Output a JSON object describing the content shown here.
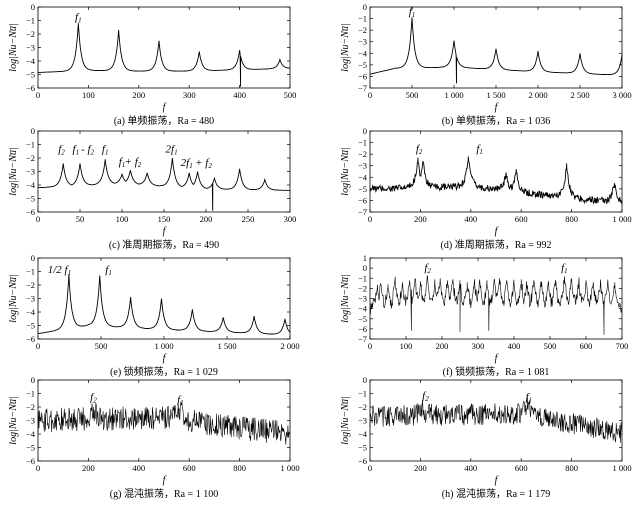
{
  "chart_data": [
    {
      "type": "line",
      "caption": "(a) 单频振荡，Ra = 480",
      "xlabel": "f",
      "ylabel": "log|Nu−Nu̅|",
      "xlim": [
        0,
        500
      ],
      "ylim": [
        -6,
        0
      ],
      "xticks": [
        0,
        100,
        200,
        300,
        400,
        500
      ],
      "xtick_labels": [
        "0",
        "100",
        "200",
        "300",
        "400",
        "500"
      ],
      "yticks": [
        0,
        -1,
        -2,
        -3,
        -4,
        -5,
        -6
      ],
      "ytick_labels": [
        "0",
        "−1",
        "−2",
        "−3",
        "−4",
        "−5",
        "−6"
      ],
      "baseline": [
        [
          0,
          -4.85
        ],
        [
          100,
          -4.7
        ],
        [
          200,
          -4.75
        ],
        [
          300,
          -4.75
        ],
        [
          400,
          -4.65
        ],
        [
          500,
          -4.55
        ]
      ],
      "peaks": [
        [
          80,
          -1.2
        ],
        [
          160,
          -1.7
        ],
        [
          240,
          -2.5
        ],
        [
          320,
          -3.3
        ],
        [
          400,
          -3.2
        ],
        [
          480,
          -3.9
        ]
      ],
      "dips": [
        [
          402,
          -5.9
        ]
      ],
      "noise": 0,
      "annotations": [
        {
          "text": "f",
          "sub": "1",
          "x": 80,
          "y": -1.0
        }
      ]
    },
    {
      "type": "line",
      "caption": "(b) 单频振荡，Ra = 1 036",
      "xlabel": "f",
      "ylabel": "log|Nu−Nu̅|",
      "xlim": [
        0,
        3000
      ],
      "ylim": [
        -7,
        0
      ],
      "xticks": [
        0,
        500,
        1000,
        1500,
        2000,
        2500,
        3000
      ],
      "xtick_labels": [
        "0",
        "500",
        "1 000",
        "1 500",
        "2 000",
        "2 500",
        "3 000"
      ],
      "yticks": [
        0,
        -1,
        -2,
        -3,
        -4,
        -5,
        -6,
        -7
      ],
      "ytick_labels": [
        "0",
        "−1",
        "−2",
        "−3",
        "−4",
        "−5",
        "−6",
        "−7"
      ],
      "baseline": [
        [
          0,
          -5.8
        ],
        [
          300,
          -5.3
        ],
        [
          1000,
          -5.2
        ],
        [
          2000,
          -5.6
        ],
        [
          3000,
          -5.9
        ]
      ],
      "peaks": [
        [
          500,
          -0.9
        ],
        [
          1000,
          -2.9
        ],
        [
          1500,
          -3.6
        ],
        [
          2000,
          -3.8
        ],
        [
          2500,
          -4.0
        ],
        [
          3000,
          -4.1
        ]
      ],
      "dips": [
        [
          1030,
          -6.6
        ]
      ],
      "noise": 0,
      "annotations": [
        {
          "text": "f",
          "sub": "1",
          "x": 500,
          "y": -0.7
        }
      ]
    },
    {
      "type": "line",
      "caption": "(c) 准周期振荡，Ra = 490",
      "xlabel": "f",
      "ylabel": "log|Nu−Nu̅|",
      "xlim": [
        0,
        300
      ],
      "ylim": [
        -6,
        0
      ],
      "xticks": [
        0,
        50,
        100,
        150,
        200,
        250,
        300
      ],
      "xtick_labels": [
        "0",
        "50",
        "100",
        "150",
        "200",
        "250",
        "300"
      ],
      "yticks": [
        0,
        -1,
        -2,
        -3,
        -4,
        -5,
        -6
      ],
      "ytick_labels": [
        "0",
        "−1",
        "−2",
        "−3",
        "−4",
        "−5",
        "−6"
      ],
      "baseline": [
        [
          0,
          -4.2
        ],
        [
          100,
          -3.9
        ],
        [
          200,
          -4.3
        ],
        [
          300,
          -4.4
        ]
      ],
      "peaks": [
        [
          30,
          -2.4
        ],
        [
          50,
          -2.4
        ],
        [
          80,
          -2.1
        ],
        [
          100,
          -3.2
        ],
        [
          110,
          -2.9
        ],
        [
          130,
          -3.1
        ],
        [
          160,
          -2.0
        ],
        [
          180,
          -3.1
        ],
        [
          190,
          -3.0
        ],
        [
          210,
          -3.5
        ],
        [
          240,
          -2.8
        ],
        [
          270,
          -3.6
        ]
      ],
      "dips": [
        [
          208,
          -5.9
        ]
      ],
      "noise": 0,
      "annotations": [
        {
          "text": "f",
          "sub": "2",
          "x": 28,
          "y": -1.6
        },
        {
          "text": "f",
          "sub": "1",
          "x": 45,
          "y": -1.6
        },
        {
          "text": "- f",
          "sub": "2",
          "x": 59,
          "y": -1.6
        },
        {
          "text": "f",
          "sub": "1",
          "x": 80,
          "y": -1.6
        },
        {
          "text": "f",
          "sub": "1",
          "x": 100,
          "y": -2.5
        },
        {
          "text": "+ f",
          "sub": "2",
          "x": 113,
          "y": -2.5
        },
        {
          "text": "2f",
          "sub": "1",
          "x": 159,
          "y": -1.6
        },
        {
          "text": "2f",
          "sub": "1",
          "x": 177,
          "y": -2.6
        },
        {
          "text": "+ f",
          "sub": "2",
          "x": 197,
          "y": -2.6
        }
      ]
    },
    {
      "type": "line",
      "caption": "(d) 准周期振荡，Ra = 992",
      "xlabel": "f",
      "ylabel": "log|Nu−Nu̅|",
      "xlim": [
        0,
        1000
      ],
      "ylim": [
        -7,
        0
      ],
      "xticks": [
        0,
        200,
        400,
        600,
        800,
        1000
      ],
      "xtick_labels": [
        "0",
        "200",
        "400",
        "600",
        "800",
        "1 000"
      ],
      "yticks": [
        0,
        -1,
        -2,
        -3,
        -4,
        -5,
        -6,
        -7
      ],
      "ytick_labels": [
        "0",
        "−1",
        "−2",
        "−3",
        "−4",
        "−5",
        "−6",
        "−7"
      ],
      "baseline": [
        [
          0,
          -5.0
        ],
        [
          400,
          -4.8
        ],
        [
          800,
          -5.8
        ],
        [
          1000,
          -6.2
        ]
      ],
      "peaks": [
        [
          190,
          -2.3
        ],
        [
          210,
          -2.6
        ],
        [
          390,
          -2.2
        ],
        [
          540,
          -3.6
        ],
        [
          580,
          -3.3
        ],
        [
          780,
          -2.8
        ],
        [
          970,
          -4.5
        ]
      ],
      "dips": [],
      "noise": 0.3,
      "annotations": [
        {
          "text": "f",
          "sub": "2",
          "x": 195,
          "y": -1.8
        },
        {
          "text": "f",
          "sub": "1",
          "x": 435,
          "y": -1.8
        }
      ]
    },
    {
      "type": "line",
      "caption": "(e) 锁频振荡，Ra = 1 029",
      "xlabel": "f",
      "ylabel": "log|Nu−Nu̅|",
      "xlim": [
        0,
        2000
      ],
      "ylim": [
        -6,
        0
      ],
      "xticks": [
        0,
        500,
        1000,
        1500,
        2000
      ],
      "xtick_labels": [
        "0",
        "500",
        "1 000",
        "1 500",
        "2 000"
      ],
      "yticks": [
        0,
        -1,
        -2,
        -3,
        -4,
        -5,
        -6
      ],
      "ytick_labels": [
        "0",
        "−1",
        "−2",
        "−3",
        "−4",
        "−5",
        "−6"
      ],
      "baseline": [
        [
          0,
          -5.6
        ],
        [
          400,
          -5.0
        ],
        [
          1000,
          -5.3
        ],
        [
          2000,
          -5.7
        ]
      ],
      "peaks": [
        [
          245,
          -1.2
        ],
        [
          490,
          -1.3
        ],
        [
          735,
          -2.9
        ],
        [
          980,
          -3.0
        ],
        [
          1225,
          -3.8
        ],
        [
          1470,
          -4.4
        ],
        [
          1715,
          -4.3
        ],
        [
          1960,
          -4.5
        ]
      ],
      "dips": [],
      "noise": 0,
      "annotations": [
        {
          "text": "1/2 f",
          "sub": "1",
          "x": 170,
          "y": -1.1
        },
        {
          "text": "f",
          "sub": "1",
          "x": 560,
          "y": -1.1
        }
      ]
    },
    {
      "type": "line",
      "caption": "(f) 锁频振荡，Ra = 1 081",
      "xlabel": "f",
      "ylabel": "log|Nu−Nu̅|",
      "xlim": [
        0,
        700
      ],
      "ylim": [
        -7,
        1
      ],
      "xticks": [
        0,
        100,
        200,
        300,
        400,
        500,
        600,
        700
      ],
      "xtick_labels": [
        "0",
        "100",
        "200",
        "300",
        "400",
        "500",
        "600",
        "700"
      ],
      "yticks": [
        1,
        0,
        -1,
        -2,
        -3,
        -4,
        -5,
        -6,
        -7
      ],
      "ytick_labels": [
        "1",
        "0",
        "−1",
        "−2",
        "−3",
        "−4",
        "−5",
        "−6",
        "−7"
      ],
      "baseline": [
        [
          0,
          -4.2
        ],
        [
          350,
          -4.3
        ],
        [
          700,
          -4.3
        ]
      ],
      "peaks": [
        [
          20,
          -2.0
        ],
        [
          30,
          -1.5
        ],
        [
          50,
          -1.6
        ],
        [
          70,
          -1.2
        ],
        [
          90,
          -1.4
        ],
        [
          110,
          -1.2
        ],
        [
          125,
          -1.0
        ],
        [
          140,
          -1.3
        ],
        [
          160,
          -0.8
        ],
        [
          180,
          -1.1
        ],
        [
          195,
          -1.0
        ],
        [
          215,
          -1.2
        ],
        [
          230,
          -1.1
        ],
        [
          250,
          -1.2
        ],
        [
          270,
          -1.4
        ],
        [
          290,
          -1.2
        ],
        [
          305,
          -1.3
        ],
        [
          325,
          -1.2
        ],
        [
          345,
          -1.1
        ],
        [
          360,
          -1.0
        ],
        [
          380,
          -1.2
        ],
        [
          400,
          -1.4
        ],
        [
          420,
          -1.1
        ],
        [
          435,
          -1.3
        ],
        [
          455,
          -1.2
        ],
        [
          475,
          -1.3
        ],
        [
          495,
          -1.4
        ],
        [
          515,
          -1.2
        ],
        [
          540,
          -0.8
        ],
        [
          560,
          -1.0
        ],
        [
          580,
          -1.3
        ],
        [
          600,
          -1.2
        ],
        [
          620,
          -1.4
        ],
        [
          640,
          -1.3
        ],
        [
          660,
          -1.5
        ],
        [
          680,
          -1.4
        ]
      ],
      "dips": [
        [
          115,
          -6.2
        ],
        [
          250,
          -6.3
        ],
        [
          330,
          -6.2
        ],
        [
          650,
          -6.6
        ]
      ],
      "noise": 0.6,
      "annotations": [
        {
          "text": "f",
          "sub": "2",
          "x": 160,
          "y": -0.3
        },
        {
          "text": "f",
          "sub": "1",
          "x": 540,
          "y": -0.3
        }
      ]
    },
    {
      "type": "line",
      "caption": "(g) 混沌振荡，Ra = 1 100",
      "xlabel": "f",
      "ylabel": "log|Nu−Nu̅|",
      "xlim": [
        0,
        1000
      ],
      "ylim": [
        -6,
        0
      ],
      "xticks": [
        0,
        200,
        400,
        600,
        800,
        1000
      ],
      "xtick_labels": [
        "0",
        "200",
        "400",
        "600",
        "800",
        "1 000"
      ],
      "yticks": [
        0,
        -1,
        -2,
        -3,
        -4,
        -5,
        -6
      ],
      "ytick_labels": [
        "0",
        "−1",
        "−2",
        "−3",
        "−4",
        "−5",
        "−6"
      ],
      "baseline": [
        [
          0,
          -3.0
        ],
        [
          200,
          -2.9
        ],
        [
          550,
          -2.8
        ],
        [
          700,
          -3.3
        ],
        [
          1000,
          -4.0
        ]
      ],
      "peaks": [
        [
          220,
          -2.0
        ],
        [
          560,
          -2.1
        ]
      ],
      "dips": [],
      "noise": 0.9,
      "annotations": [
        {
          "text": "f",
          "sub": "2",
          "x": 220,
          "y": -1.5
        },
        {
          "text": "f",
          "sub": "1",
          "x": 565,
          "y": -1.7
        }
      ]
    },
    {
      "type": "line",
      "caption": "(h) 混沌振荡，Ra = 1 179",
      "xlabel": "f",
      "ylabel": "log|Nu−Nu̅|",
      "xlim": [
        0,
        1000
      ],
      "ylim": [
        -6,
        0
      ],
      "xticks": [
        0,
        200,
        400,
        600,
        800,
        1000
      ],
      "xtick_labels": [
        "0",
        "200",
        "400",
        "600",
        "800",
        "1 000"
      ],
      "yticks": [
        0,
        -1,
        -2,
        -3,
        -4,
        -5,
        -6
      ],
      "ytick_labels": [
        "0",
        "−1",
        "−2",
        "−3",
        "−4",
        "−5",
        "−6"
      ],
      "baseline": [
        [
          0,
          -2.7
        ],
        [
          200,
          -2.6
        ],
        [
          620,
          -2.5
        ],
        [
          800,
          -3.2
        ],
        [
          1000,
          -3.9
        ]
      ],
      "peaks": [
        [
          210,
          -2.0
        ],
        [
          625,
          -1.9
        ]
      ],
      "dips": [],
      "noise": 0.8,
      "annotations": [
        {
          "text": "f",
          "sub": "2",
          "x": 220,
          "y": -1.4
        },
        {
          "text": "f",
          "sub": "1",
          "x": 630,
          "y": -1.5
        }
      ]
    }
  ]
}
